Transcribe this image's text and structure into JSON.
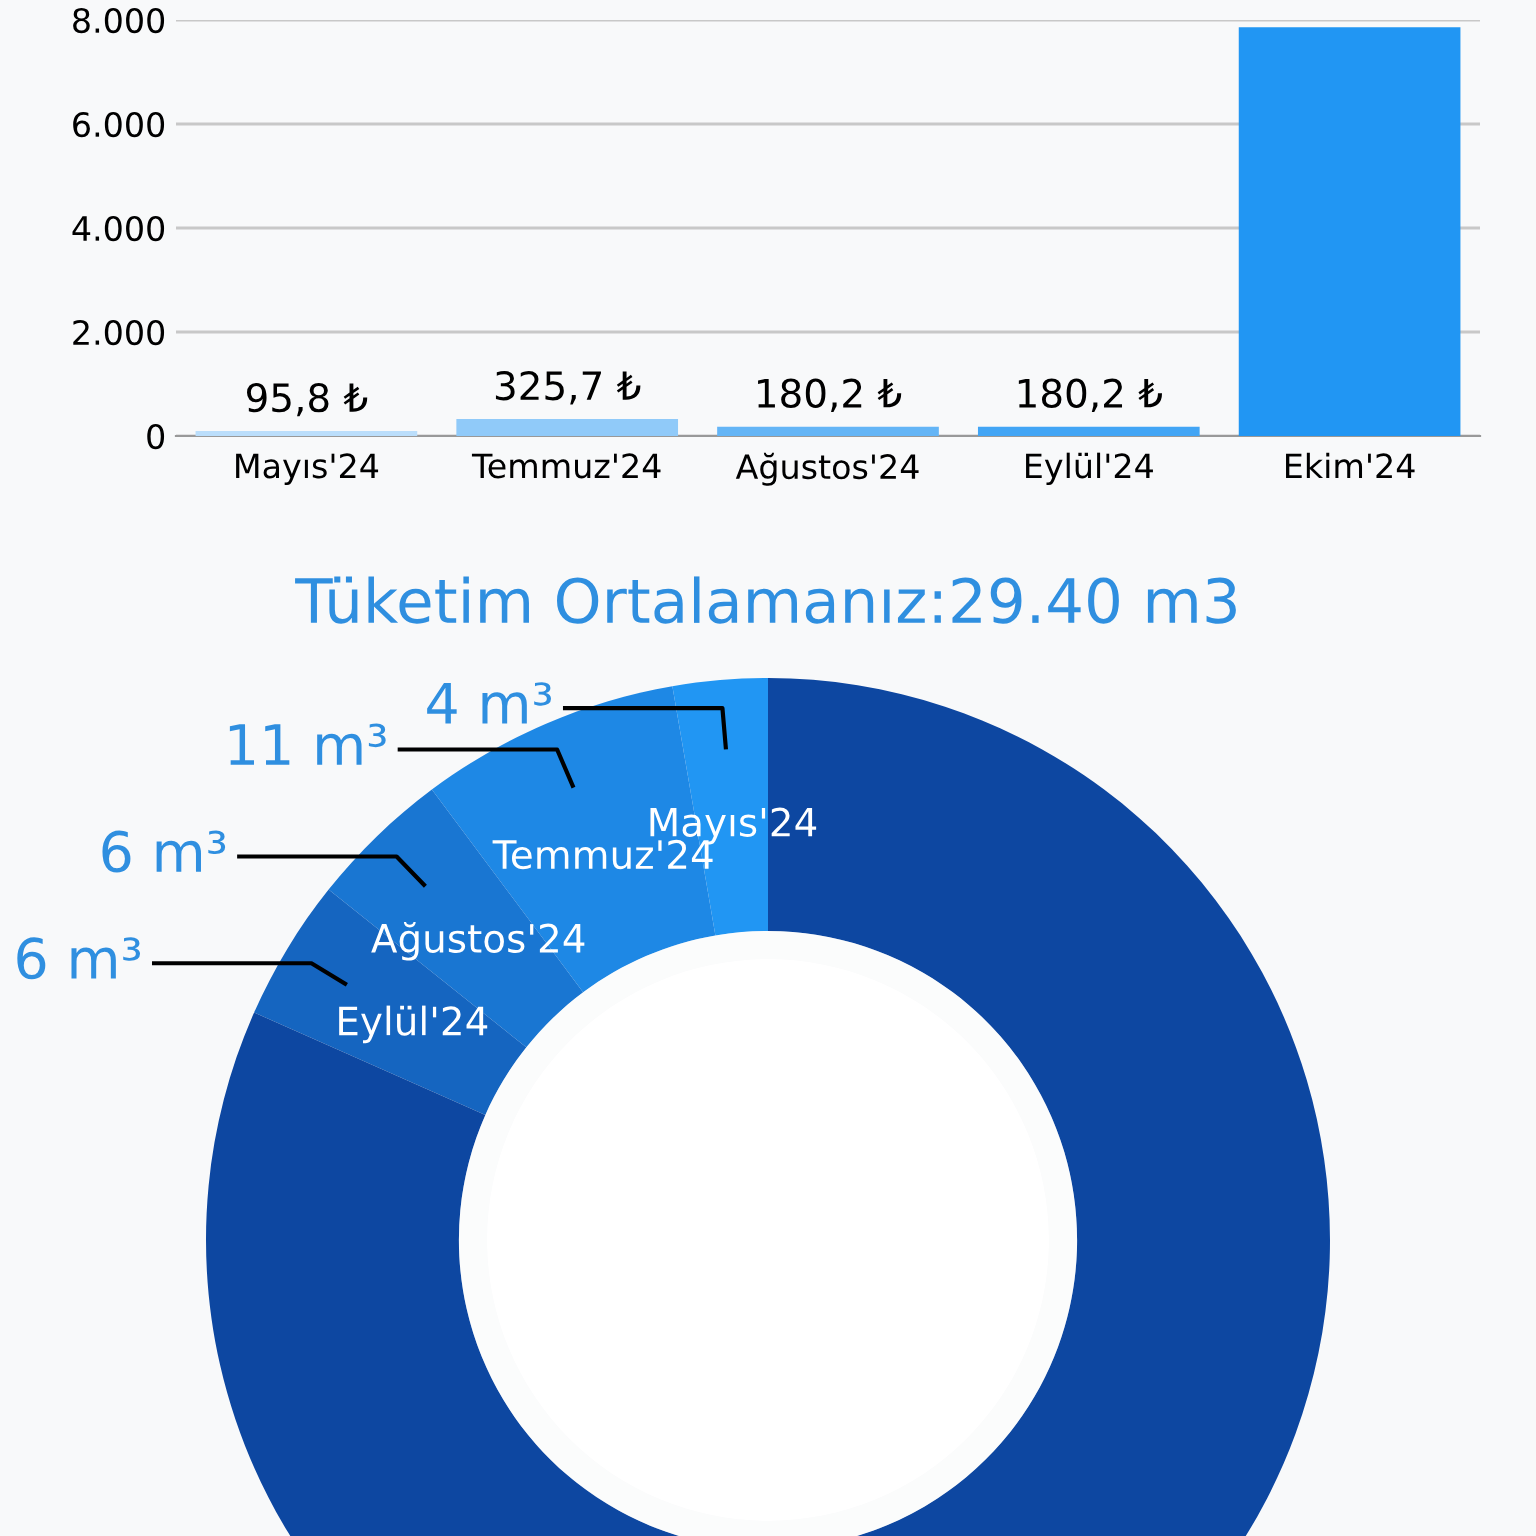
{
  "chart_data": [
    {
      "type": "bar",
      "categories": [
        "Mayıs'24",
        "Temmuz'24",
        "Ağustos'24",
        "Eylül'24",
        "Ekim'24"
      ],
      "values": [
        95.8,
        325.7,
        180.2,
        180.2,
        7860
      ],
      "colors": [
        "#bbdefb",
        "#90caf9",
        "#64b5f6",
        "#42a5f5",
        "#2196f3"
      ],
      "value_labels": [
        "95,8 ₺",
        "325,7 ₺",
        "180,2 ₺",
        "180,2 ₺",
        null
      ],
      "ylim": [
        0,
        8000
      ],
      "yticks": [
        {
          "value": 0,
          "label": "0"
        },
        {
          "value": 2000,
          "label": "2.000"
        },
        {
          "value": 4000,
          "label": "4.000"
        },
        {
          "value": 6000,
          "label": "6.000"
        },
        {
          "value": 8000,
          "label": "8.000"
        }
      ],
      "grid": "y",
      "legend": false
    },
    {
      "type": "donut",
      "title": "Tüketim Ortalamanız:29.40 m3",
      "categories": [
        "Mayıs'24",
        "Temmuz'24",
        "Ağustos'24",
        "Eylül'24",
        null
      ],
      "values": [
        4,
        11,
        6,
        6,
        120
      ],
      "colors": [
        "#2196f3",
        "#1e88e5",
        "#1976d2",
        "#1565c0",
        "#0d47a1"
      ],
      "value_labels": [
        "4 m³",
        "11 m³",
        "6 m³",
        "6 m³",
        null
      ],
      "legend": false
    }
  ]
}
